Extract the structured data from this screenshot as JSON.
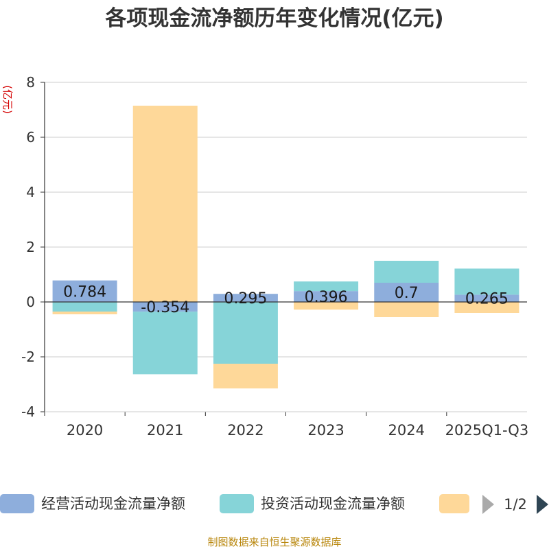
{
  "title": "各项现金流净额历年变化情况(亿元)",
  "source": "制图数据来自恒生聚源数据库",
  "legend": {
    "items": [
      {
        "name": "经营活动现金流量净额",
        "color": "#8eaedc"
      },
      {
        "name": "投资活动现金流量净额",
        "color": "#86d4d8"
      },
      {
        "name": "",
        "color": "#fed899"
      }
    ],
    "page": "1/2"
  },
  "colors": {
    "operating": "#8eaedc",
    "investing": "#86d4d8",
    "financing": "#fed899",
    "axis": "#333333",
    "grid": "#cccccc",
    "unit": "#d40000",
    "nav_prev": "#aaaaaa",
    "nav_next": "#2f4554"
  },
  "chart_data": {
    "type": "bar",
    "stacked": true,
    "title": "各项现金流净额历年变化情况(亿元)",
    "ylabel": "(亿元)",
    "xlabel": "",
    "ylim": [
      -4,
      8
    ],
    "yticks": [
      -4,
      -2,
      0,
      2,
      4,
      6,
      8
    ],
    "grid": true,
    "legend_position": "bottom",
    "categories": [
      "2020",
      "2021",
      "2022",
      "2023",
      "2024",
      "2025Q1-Q3"
    ],
    "series": [
      {
        "name": "经营活动现金流量净额",
        "values": [
          0.784,
          -0.354,
          0.295,
          0.396,
          0.7,
          0.265
        ],
        "show_labels": true
      },
      {
        "name": "投资活动现金流量净额",
        "values": [
          -0.35,
          -2.28,
          -2.25,
          0.35,
          0.8,
          0.95
        ],
        "show_labels": false
      },
      {
        "name": "",
        "values": [
          -0.1,
          7.15,
          -0.9,
          -0.28,
          -0.55,
          -0.4
        ],
        "show_labels": false
      }
    ]
  }
}
